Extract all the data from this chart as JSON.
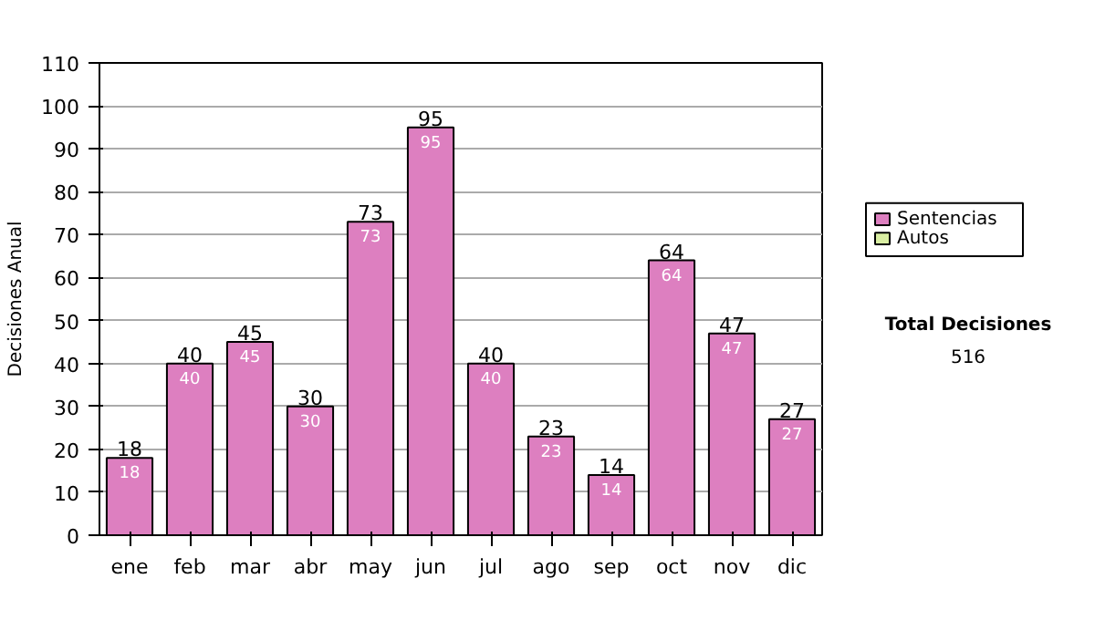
{
  "chart_data": {
    "type": "bar",
    "ylabel": "Decisiones Anual",
    "categories": [
      "ene",
      "feb",
      "mar",
      "abr",
      "may",
      "jun",
      "jul",
      "ago",
      "sep",
      "oct",
      "nov",
      "dic"
    ],
    "series": [
      {
        "name": "Sentencias",
        "color": "#dd7fc0",
        "values": [
          18,
          40,
          45,
          30,
          73,
          95,
          40,
          23,
          14,
          64,
          47,
          27
        ],
        "value_labels": [
          "18",
          "40",
          "45",
          "30",
          "73",
          "95",
          "40",
          "23",
          "14",
          "64",
          "47",
          "27"
        ]
      },
      {
        "name": "Autos",
        "color": "#d9eea2",
        "values": [
          null,
          null,
          null,
          null,
          null,
          null,
          null,
          null,
          null,
          null,
          null,
          null
        ]
      }
    ],
    "ylim": [
      0,
      110
    ],
    "yticks": [
      0,
      10,
      20,
      30,
      40,
      50,
      60,
      70,
      80,
      90,
      100,
      110
    ],
    "grid": "y",
    "legend": "right",
    "annotations": [
      "Total Decisiones",
      "516",
      {
        "text": "18",
        "x": "ene",
        "y": 18
      },
      {
        "text": "40",
        "x": "feb",
        "y": 40
      },
      {
        "text": "45",
        "x": "mar",
        "y": 45
      },
      {
        "text": "30",
        "x": "abr",
        "y": 30
      },
      {
        "text": "73",
        "x": "may",
        "y": 73
      },
      {
        "text": "95",
        "x": "jun",
        "y": 95
      },
      {
        "text": "40",
        "x": "jul",
        "y": 40
      },
      {
        "text": "23",
        "x": "ago",
        "y": 23
      },
      {
        "text": "14",
        "x": "sep",
        "y": 14
      },
      {
        "text": "64",
        "x": "oct",
        "y": 64
      },
      {
        "text": "47",
        "x": "nov",
        "y": 47
      },
      {
        "text": "27",
        "x": "dic",
        "y": 27
      }
    ]
  }
}
